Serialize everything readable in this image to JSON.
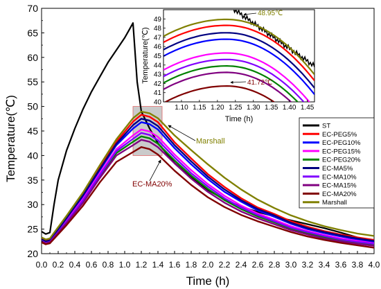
{
  "chart_data": [
    {
      "type": "line",
      "xlabel": "Time (h)",
      "ylabel": "Temperature(℃)",
      "xlim": [
        0.0,
        4.0
      ],
      "ylim": [
        20,
        70
      ],
      "x_ticks": [
        "0.0",
        "0.2",
        "0.4",
        "0.6",
        "0.8",
        "1.0",
        "1.2",
        "1.4",
        "1.6",
        "1.8",
        "2.0",
        "2.2",
        "2.4",
        "2.6",
        "2.8",
        "3.0",
        "3.2",
        "3.4",
        "3.6",
        "3.8",
        "4.0"
      ],
      "y_ticks": [
        "20",
        "25",
        "30",
        "35",
        "40",
        "45",
        "50",
        "55",
        "60",
        "65",
        "70"
      ],
      "legend_position": "right",
      "highlight_region": {
        "x": [
          1.1,
          1.45
        ],
        "y": [
          40,
          50
        ]
      },
      "annotations": [
        {
          "text": "Marshall",
          "color": "#808000"
        },
        {
          "text": "EC-MA20%",
          "color": "#800000"
        }
      ],
      "series": [
        {
          "name": "ST",
          "color": "#000000",
          "points": [
            [
              0,
              24.5
            ],
            [
              0.05,
              24.0
            ],
            [
              0.1,
              24.3
            ],
            [
              0.15,
              30
            ],
            [
              0.2,
              35
            ],
            [
              0.3,
              41
            ],
            [
              0.4,
              45.5
            ],
            [
              0.5,
              49.5
            ],
            [
              0.6,
              53
            ],
            [
              0.7,
              56
            ],
            [
              0.8,
              59
            ],
            [
              0.9,
              61.5
            ],
            [
              1.0,
              64
            ],
            [
              1.05,
              65.5
            ],
            [
              1.1,
              67
            ],
            [
              1.15,
              55
            ],
            [
              1.2,
              49
            ],
            [
              1.3,
              45.5
            ],
            [
              1.4,
              42.5
            ],
            [
              1.6,
              38.5
            ],
            [
              1.8,
              35.5
            ],
            [
              2.0,
              33
            ],
            [
              2.2,
              31
            ],
            [
              2.4,
              29.6
            ],
            [
              2.6,
              28.5
            ],
            [
              2.8,
              27.6
            ],
            [
              3.0,
              26.8
            ],
            [
              3.2,
              26.0
            ],
            [
              3.4,
              25.2
            ],
            [
              3.6,
              24.3
            ],
            [
              3.8,
              23.3
            ],
            [
              4.0,
              22.5
            ]
          ]
        },
        {
          "name": "EC-PEG5%",
          "color": "#ff0000",
          "peak": 48.3,
          "points": [
            [
              0,
              23
            ],
            [
              0.05,
              22.6
            ],
            [
              0.1,
              22.8
            ],
            [
              0.3,
              27.4
            ],
            [
              0.5,
              32.1
            ],
            [
              0.7,
              37.5
            ],
            [
              0.9,
              42.8
            ],
            [
              1.1,
              46.9
            ],
            [
              1.2,
              48.3
            ],
            [
              1.3,
              47.9
            ],
            [
              1.4,
              46.8
            ],
            [
              1.6,
              42.7
            ],
            [
              1.8,
              39.4
            ],
            [
              2.0,
              36.2
            ],
            [
              2.2,
              33.6
            ],
            [
              2.4,
              31.3
            ],
            [
              2.6,
              29.4
            ],
            [
              2.8,
              28.1
            ],
            [
              3.0,
              26.6
            ],
            [
              3.2,
              25.5
            ],
            [
              3.4,
              24.6
            ],
            [
              3.6,
              23.9
            ],
            [
              3.8,
              23.3
            ],
            [
              4.0,
              22.8
            ]
          ]
        },
        {
          "name": "EC-PEG10%",
          "color": "#0000ff",
          "peak": 46.8,
          "points": [
            [
              0,
              22.8
            ],
            [
              0.05,
              22.4
            ],
            [
              0.1,
              22.6
            ],
            [
              0.3,
              27.0
            ],
            [
              0.5,
              31.7
            ],
            [
              0.7,
              37.0
            ],
            [
              0.9,
              42.1
            ],
            [
              1.1,
              45.5
            ],
            [
              1.2,
              46.8
            ],
            [
              1.3,
              46.4
            ],
            [
              1.4,
              45.3
            ],
            [
              1.6,
              41.5
            ],
            [
              1.8,
              38.2
            ],
            [
              2.0,
              35.2
            ],
            [
              2.2,
              32.6
            ],
            [
              2.4,
              30.6
            ],
            [
              2.6,
              28.8
            ],
            [
              2.8,
              27.5
            ],
            [
              3.0,
              26.1
            ],
            [
              3.2,
              25.0
            ],
            [
              3.4,
              24.2
            ],
            [
              3.6,
              23.5
            ],
            [
              3.8,
              22.9
            ],
            [
              4.0,
              22.4
            ]
          ]
        },
        {
          "name": "EC-PEG15%",
          "color": "#ff00ff",
          "peak": 45.3,
          "points": [
            [
              0,
              22.7
            ],
            [
              0.05,
              22.3
            ],
            [
              0.1,
              22.5
            ],
            [
              0.3,
              26.7
            ],
            [
              0.5,
              31.2
            ],
            [
              0.7,
              36.4
            ],
            [
              0.9,
              41.3
            ],
            [
              1.1,
              44.1
            ],
            [
              1.2,
              45.3
            ],
            [
              1.3,
              44.9
            ],
            [
              1.4,
              43.8
            ],
            [
              1.6,
              40.2
            ],
            [
              1.8,
              37.0
            ],
            [
              2.0,
              34.2
            ],
            [
              2.2,
              31.8
            ],
            [
              2.4,
              29.8
            ],
            [
              2.6,
              28.2
            ],
            [
              2.8,
              26.9
            ],
            [
              3.0,
              25.6
            ],
            [
              3.2,
              24.6
            ],
            [
              3.4,
              23.8
            ],
            [
              3.6,
              23.1
            ],
            [
              3.8,
              22.6
            ],
            [
              4.0,
              22.1
            ]
          ]
        },
        {
          "name": "EC-PEG20%",
          "color": "#008000",
          "peak": 43.9,
          "points": [
            [
              0,
              22.6
            ],
            [
              0.05,
              22.2
            ],
            [
              0.1,
              22.4
            ],
            [
              0.3,
              26.4
            ],
            [
              0.5,
              30.7
            ],
            [
              0.7,
              35.8
            ],
            [
              0.9,
              40.5
            ],
            [
              1.1,
              42.8
            ],
            [
              1.2,
              43.9
            ],
            [
              1.3,
              43.5
            ],
            [
              1.4,
              42.4
            ],
            [
              1.6,
              39.0
            ],
            [
              1.8,
              35.9
            ],
            [
              2.0,
              33.2
            ],
            [
              2.2,
              30.9
            ],
            [
              2.4,
              29.1
            ],
            [
              2.6,
              27.6
            ],
            [
              2.8,
              26.4
            ],
            [
              3.0,
              25.1
            ],
            [
              3.2,
              24.2
            ],
            [
              3.4,
              23.4
            ],
            [
              3.6,
              22.7
            ],
            [
              3.8,
              22.2
            ],
            [
              4.0,
              21.8
            ]
          ]
        },
        {
          "name": "EC-MA5%",
          "color": "#000080",
          "peak": 47.5,
          "points": [
            [
              0,
              22.9
            ],
            [
              0.05,
              22.5
            ],
            [
              0.1,
              22.7
            ],
            [
              0.3,
              27.2
            ],
            [
              0.5,
              31.9
            ],
            [
              0.7,
              37.2
            ],
            [
              0.9,
              42.4
            ],
            [
              1.1,
              46.2
            ],
            [
              1.2,
              47.5
            ],
            [
              1.3,
              47.1
            ],
            [
              1.4,
              46.0
            ],
            [
              1.6,
              42.1
            ],
            [
              1.8,
              38.8
            ],
            [
              2.0,
              35.7
            ],
            [
              2.2,
              33.1
            ],
            [
              2.4,
              30.9
            ],
            [
              2.6,
              29.1
            ],
            [
              2.8,
              27.8
            ],
            [
              3.0,
              26.3
            ],
            [
              3.2,
              25.2
            ],
            [
              3.4,
              24.4
            ],
            [
              3.6,
              23.7
            ],
            [
              3.8,
              23.1
            ],
            [
              4.0,
              22.6
            ]
          ]
        },
        {
          "name": "EC-MA10%",
          "color": "#8000ff",
          "peak": 44.6,
          "points": [
            [
              0,
              22.6
            ],
            [
              0.05,
              22.2
            ],
            [
              0.1,
              22.4
            ],
            [
              0.3,
              26.5
            ],
            [
              0.5,
              30.9
            ],
            [
              0.7,
              36.0
            ],
            [
              0.9,
              40.9
            ],
            [
              1.1,
              43.4
            ],
            [
              1.2,
              44.6
            ],
            [
              1.3,
              44.2
            ],
            [
              1.4,
              43.1
            ],
            [
              1.6,
              39.6
            ],
            [
              1.8,
              36.4
            ],
            [
              2.0,
              33.7
            ],
            [
              2.2,
              31.3
            ],
            [
              2.4,
              29.4
            ],
            [
              2.6,
              27.9
            ],
            [
              2.8,
              26.6
            ],
            [
              3.0,
              25.3
            ],
            [
              3.2,
              24.4
            ],
            [
              3.4,
              23.6
            ],
            [
              3.6,
              22.9
            ],
            [
              3.8,
              22.4
            ],
            [
              4.0,
              22.0
            ]
          ]
        },
        {
          "name": "EC-MA15%",
          "color": "#800080",
          "peak": 43.2,
          "points": [
            [
              0,
              22.5
            ],
            [
              0.05,
              22.1
            ],
            [
              0.1,
              22.3
            ],
            [
              0.3,
              26.2
            ],
            [
              0.5,
              30.4
            ],
            [
              0.7,
              35.4
            ],
            [
              0.9,
              40.0
            ],
            [
              1.1,
              42.1
            ],
            [
              1.2,
              43.2
            ],
            [
              1.3,
              42.8
            ],
            [
              1.4,
              41.7
            ],
            [
              1.6,
              38.4
            ],
            [
              1.8,
              35.3
            ],
            [
              2.0,
              32.6
            ],
            [
              2.2,
              30.4
            ],
            [
              2.4,
              28.6
            ],
            [
              2.6,
              27.2
            ],
            [
              2.8,
              26.0
            ],
            [
              3.0,
              24.8
            ],
            [
              3.2,
              23.9
            ],
            [
              3.4,
              23.1
            ],
            [
              3.6,
              22.5
            ],
            [
              3.8,
              22.0
            ],
            [
              4.0,
              21.6
            ]
          ]
        },
        {
          "name": "EC-MA20%",
          "color": "#800000",
          "peak": 41.72,
          "points": [
            [
              0,
              22.3
            ],
            [
              0.05,
              21.9
            ],
            [
              0.1,
              22.1
            ],
            [
              0.3,
              25.8
            ],
            [
              0.5,
              29.8
            ],
            [
              0.7,
              34.5
            ],
            [
              0.9,
              38.7
            ],
            [
              1.1,
              40.7
            ],
            [
              1.2,
              41.72
            ],
            [
              1.3,
              41.3
            ],
            [
              1.4,
              40.2
            ],
            [
              1.6,
              36.9
            ],
            [
              1.8,
              34.0
            ],
            [
              2.0,
              31.5
            ],
            [
              2.2,
              29.5
            ],
            [
              2.4,
              27.9
            ],
            [
              2.6,
              26.6
            ],
            [
              2.8,
              25.5
            ],
            [
              3.0,
              24.4
            ],
            [
              3.2,
              23.5
            ],
            [
              3.4,
              22.8
            ],
            [
              3.6,
              22.2
            ],
            [
              3.8,
              21.7
            ],
            [
              4.0,
              21.2
            ]
          ]
        },
        {
          "name": "Marshall",
          "color": "#808000",
          "peak": 48.95,
          "points": [
            [
              0,
              23.3
            ],
            [
              0.05,
              22.9
            ],
            [
              0.1,
              23.1
            ],
            [
              0.3,
              27.7
            ],
            [
              0.5,
              32.5
            ],
            [
              0.7,
              38.0
            ],
            [
              0.9,
              43.3
            ],
            [
              1.1,
              47.6
            ],
            [
              1.2,
              48.95
            ],
            [
              1.3,
              48.6
            ],
            [
              1.4,
              47.6
            ],
            [
              1.6,
              44.1
            ],
            [
              1.8,
              41.1
            ],
            [
              2.0,
              38.2
            ],
            [
              2.2,
              35.5
            ],
            [
              2.4,
              33.1
            ],
            [
              2.6,
              31.0
            ],
            [
              2.8,
              29.3
            ],
            [
              3.0,
              27.8
            ],
            [
              3.2,
              26.6
            ],
            [
              3.4,
              25.6
            ],
            [
              3.6,
              24.8
            ],
            [
              3.8,
              24.1
            ],
            [
              4.0,
              23.6
            ]
          ]
        }
      ]
    },
    {
      "type": "line",
      "role": "inset",
      "xlabel": "Time (h)",
      "ylabel": "Temperature(℃)",
      "xlim": [
        1.05,
        1.47
      ],
      "ylim": [
        40,
        50
      ],
      "x_ticks": [
        "1.10",
        "1.15",
        "1.20",
        "1.25",
        "1.30",
        "1.35",
        "1.40",
        "1.45"
      ],
      "y_ticks": [
        "40",
        "41",
        "42",
        "43",
        "44",
        "45",
        "46",
        "47",
        "48",
        "49"
      ],
      "annotations": [
        {
          "text": "48.95℃",
          "color": "#808000"
        },
        {
          "text": "41.72℃",
          "color": "#800000"
        }
      ]
    }
  ]
}
